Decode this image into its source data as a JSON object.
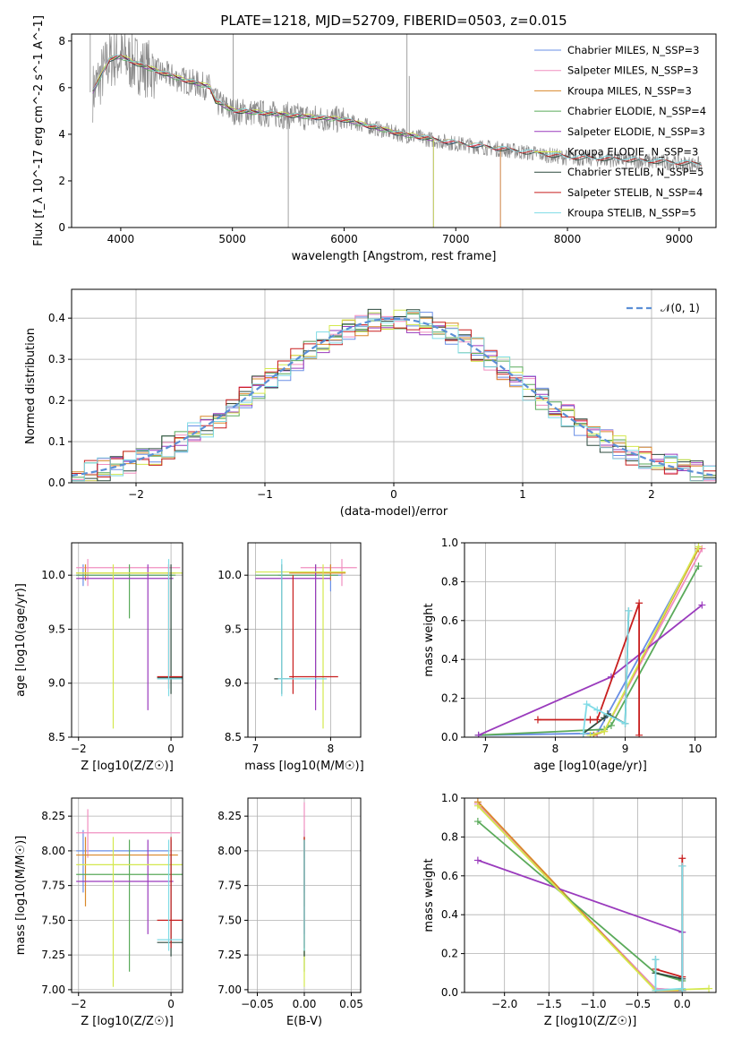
{
  "figure_title": "PLATE=1218, MJD=52709, FIBERID=0503, z=0.015",
  "colors": {
    "series": [
      "#6a8fe6",
      "#f18fc0",
      "#d9882a",
      "#5aaa5a",
      "#9a3bbd",
      "#d4e84e",
      "#2d4a3e",
      "#c81e1e",
      "#7fdbe6"
    ],
    "spectrum": "#8a8a8a",
    "normal_curve": "#5b8fd6",
    "grid": "#b0b0b0",
    "overlay_lines": [
      "#5aaa5a",
      "#9a3bbd",
      "#d4e84e",
      "#d9882a",
      "#c81e1e",
      "#5b8b7a",
      "#7fdbe6"
    ]
  },
  "chart_data": [
    {
      "id": "spectrum",
      "type": "line",
      "title": "PLATE=1218, MJD=52709, FIBERID=0503, z=0.015",
      "xlabel": "wavelength [Angstrom, rest frame]",
      "ylabel": "Flux [f_λ 10^-17 erg cm^-2 s^-1 A^-1]",
      "xlim": [
        3560,
        9330
      ],
      "ylim": [
        0,
        8.3
      ],
      "xticks": [
        4000,
        5000,
        6000,
        7000,
        8000,
        9000
      ],
      "yticks": [
        0,
        2,
        4,
        6,
        8
      ],
      "grid": false,
      "legend_position": "top-right",
      "legend": [
        "Chabrier MILES, N_SSP=3",
        "Salpeter MILES, N_SSP=3",
        "Kroupa MILES, N_SSP=3",
        "Chabrier ELODIE, N_SSP=4",
        "Salpeter ELODIE, N_SSP=3",
        "Kroupa ELODIE, N_SSP=3",
        "Chabrier STELIB, N_SSP=5",
        "Salpeter STELIB, N_SSP=4",
        "Kroupa STELIB, N_SSP=5"
      ],
      "data_envelope": {
        "x": [
          3750,
          3900,
          4000,
          4200,
          4500,
          4800,
          4850,
          5000,
          5500,
          6000,
          6500,
          7000,
          7500,
          8000,
          8500,
          9200
        ],
        "y": [
          5.8,
          7.2,
          7.3,
          6.9,
          6.4,
          6.0,
          5.4,
          5.0,
          4.8,
          4.6,
          4.0,
          3.6,
          3.3,
          3.0,
          2.9,
          2.7
        ]
      },
      "models": [
        {
          "name": "Chabrier MILES, N_SSP=3",
          "xmax": 7400
        },
        {
          "name": "Salpeter MILES, N_SSP=3",
          "xmax": 7400
        },
        {
          "name": "Kroupa MILES, N_SSP=3",
          "xmax": 7400
        },
        {
          "name": "Chabrier ELODIE, N_SSP=4",
          "xmax": 6800
        },
        {
          "name": "Salpeter ELODIE, N_SSP=3",
          "xmax": 6800
        },
        {
          "name": "Kroupa ELODIE, N_SSP=3",
          "xmax": 6800
        },
        {
          "name": "Chabrier STELIB, N_SSP=5",
          "xmax": 9200
        },
        {
          "name": "Salpeter STELIB, N_SSP=4",
          "xmax": 9200
        },
        {
          "name": "Kroupa STELIB, N_SSP=5",
          "xmax": 9200
        }
      ]
    },
    {
      "id": "residuals",
      "type": "histogram",
      "xlabel": "(data-model)/error",
      "ylabel": "Normed distribution",
      "xlim": [
        -2.5,
        2.5
      ],
      "ylim": [
        0,
        0.47
      ],
      "xticks": [
        -2,
        -1,
        0,
        1,
        2
      ],
      "yticks": [
        0.0,
        0.1,
        0.2,
        0.3,
        0.4
      ],
      "grid": true,
      "legend_position": "top-right",
      "legend": [
        "𝒩(0, 1)"
      ],
      "bin_edges": [
        -2.5,
        -2.4,
        -2.3,
        -2.2,
        -2.1,
        -2.0,
        -1.9,
        -1.8,
        -1.7,
        -1.6,
        -1.5,
        -1.4,
        -1.3,
        -1.2,
        -1.1,
        -1.0,
        -0.9,
        -0.8,
        -0.7,
        -0.6,
        -0.5,
        -0.4,
        -0.3,
        -0.2,
        -0.1,
        0.0,
        0.1,
        0.2,
        0.3,
        0.4,
        0.5,
        0.6,
        0.7,
        0.8,
        0.9,
        1.0,
        1.1,
        1.2,
        1.3,
        1.4,
        1.5,
        1.6,
        1.7,
        1.8,
        1.9,
        2.0,
        2.1,
        2.2,
        2.3,
        2.4,
        2.5
      ],
      "reference_curve": "normal(0,1) pdf"
    },
    {
      "id": "age_vs_Z",
      "type": "errorbar",
      "xlabel": "Z [log10(Z/Z☉)]",
      "ylabel": "age  [log10(age/yr)]",
      "xlim": [
        -2.15,
        0.25
      ],
      "ylim": [
        8.5,
        10.3
      ],
      "xticks": [
        -2,
        0
      ],
      "yticks": [
        8.5,
        9.0,
        9.5,
        10.0
      ],
      "grid": true,
      "points": [
        {
          "series": 0,
          "x": -1.9,
          "y": 10.0,
          "xlo": -2.05,
          "xhi": 0.05,
          "ylo": 9.9,
          "yhi": 10.1
        },
        {
          "series": 1,
          "x": -1.8,
          "y": 10.07,
          "xlo": -2.05,
          "xhi": 0.2,
          "ylo": 9.9,
          "yhi": 10.15
        },
        {
          "series": 2,
          "x": -1.85,
          "y": 10.02,
          "xlo": -2.05,
          "xhi": 0.1,
          "ylo": 9.95,
          "yhi": 10.1
        },
        {
          "series": 3,
          "x": -0.9,
          "y": 10.0,
          "xlo": -2.05,
          "xhi": 0.1,
          "ylo": 9.6,
          "yhi": 10.1
        },
        {
          "series": 4,
          "x": -0.5,
          "y": 9.97,
          "xlo": -2.05,
          "xhi": 0.05,
          "ylo": 8.75,
          "yhi": 10.1
        },
        {
          "series": 5,
          "x": -1.25,
          "y": 10.02,
          "xlo": -2.05,
          "xhi": 0.3,
          "ylo": 8.58,
          "yhi": 10.1
        },
        {
          "series": 6,
          "x": 0.0,
          "y": 9.05,
          "xlo": -0.3,
          "xhi": 0.3,
          "ylo": 8.9,
          "yhi": 10.1
        },
        {
          "series": 7,
          "x": -0.05,
          "y": 9.06,
          "xlo": -0.3,
          "xhi": 0.3,
          "ylo": 8.95,
          "yhi": 10.1
        },
        {
          "series": 8,
          "x": -0.05,
          "y": 9.04,
          "xlo": -0.3,
          "xhi": 0.3,
          "ylo": 8.88,
          "yhi": 10.15
        }
      ]
    },
    {
      "id": "age_vs_mass",
      "type": "errorbar",
      "xlabel": "mass [log10(M/M☉)]",
      "ylabel": "",
      "xlim": [
        6.9,
        8.4
      ],
      "ylim": [
        8.5,
        10.3
      ],
      "xticks": [
        7,
        8
      ],
      "yticks": [
        8.5,
        9.0,
        9.5,
        10.0
      ],
      "grid": true,
      "points": [
        {
          "series": 0,
          "x": 8.0,
          "y": 10.0,
          "xlo": 7.3,
          "xhi": 8.15,
          "ylo": 9.85,
          "yhi": 10.1
        },
        {
          "series": 1,
          "x": 8.15,
          "y": 10.07,
          "xlo": 7.6,
          "xhi": 8.35,
          "ylo": 9.9,
          "yhi": 10.15
        },
        {
          "series": 2,
          "x": 8.0,
          "y": 10.02,
          "xlo": 7.45,
          "xhi": 8.2,
          "ylo": 9.95,
          "yhi": 10.1
        },
        {
          "series": 3,
          "x": 7.8,
          "y": 10.0,
          "xlo": 7.0,
          "xhi": 8.1,
          "ylo": 8.95,
          "yhi": 10.1
        },
        {
          "series": 4,
          "x": 7.8,
          "y": 9.97,
          "xlo": 7.0,
          "xhi": 8.0,
          "ylo": 8.75,
          "yhi": 10.1
        },
        {
          "series": 5,
          "x": 7.9,
          "y": 10.03,
          "xlo": 7.0,
          "xhi": 8.2,
          "ylo": 8.58,
          "yhi": 10.1
        },
        {
          "series": 6,
          "x": 7.35,
          "y": 9.04,
          "xlo": 7.25,
          "xhi": 7.5,
          "ylo": 8.9,
          "yhi": 10.1
        },
        {
          "series": 7,
          "x": 7.5,
          "y": 9.06,
          "xlo": 7.45,
          "xhi": 8.1,
          "ylo": 8.9,
          "yhi": 10.0
        },
        {
          "series": 8,
          "x": 7.35,
          "y": 9.04,
          "xlo": 7.3,
          "xhi": 7.95,
          "ylo": 8.88,
          "yhi": 10.15
        }
      ]
    },
    {
      "id": "weight_vs_age",
      "type": "line",
      "xlabel": "age  [log10(age/yr)]",
      "ylabel": "mass weight",
      "xlim": [
        6.7,
        10.3
      ],
      "ylim": [
        0,
        1.0
      ],
      "xticks": [
        7,
        8,
        9,
        10
      ],
      "yticks": [
        0.0,
        0.2,
        0.4,
        0.6,
        0.8,
        1.0
      ],
      "grid": true,
      "lines": [
        {
          "color_index": 0,
          "points": [
            [
              6.9,
              0.01
            ],
            [
              8.6,
              0.02
            ],
            [
              10.05,
              0.97
            ]
          ]
        },
        {
          "color_index": 1,
          "points": [
            [
              8.6,
              0.02
            ],
            [
              8.7,
              0.03
            ],
            [
              10.1,
              0.97
            ]
          ]
        },
        {
          "color_index": 2,
          "points": [
            [
              8.55,
              0.01
            ],
            [
              8.7,
              0.03
            ],
            [
              10.05,
              0.97
            ]
          ]
        },
        {
          "color_index": 3,
          "points": [
            [
              6.9,
              0.01
            ],
            [
              8.7,
              0.04
            ],
            [
              8.8,
              0.06
            ],
            [
              10.05,
              0.88
            ]
          ]
        },
        {
          "color_index": 4,
          "points": [
            [
              6.9,
              0.01
            ],
            [
              8.8,
              0.31
            ],
            [
              10.1,
              0.68
            ]
          ]
        },
        {
          "color_index": 5,
          "points": [
            [
              8.5,
              0.01
            ],
            [
              8.7,
              0.03
            ],
            [
              10.05,
              0.98
            ]
          ]
        },
        {
          "color_index": 6,
          "points": [
            [
              8.4,
              0.02
            ],
            [
              8.7,
              0.1
            ],
            [
              8.75,
              0.12
            ],
            [
              9.0,
              0.07
            ],
            [
              9.05,
              0.65
            ]
          ]
        },
        {
          "color_index": 7,
          "points": [
            [
              7.75,
              0.09
            ],
            [
              8.5,
              0.09
            ],
            [
              8.6,
              0.09
            ],
            [
              9.2,
              0.69
            ],
            [
              9.2,
              0.01
            ]
          ]
        },
        {
          "color_index": 8,
          "points": [
            [
              8.4,
              0.02
            ],
            [
              8.45,
              0.17
            ],
            [
              8.6,
              0.14
            ],
            [
              9.0,
              0.07
            ],
            [
              9.05,
              0.65
            ]
          ]
        }
      ]
    },
    {
      "id": "mass_vs_Z",
      "type": "errorbar",
      "xlabel": "Z [log10(Z/Z☉)]",
      "ylabel": "mass [log10(M/M☉)]",
      "xlim": [
        -2.15,
        0.25
      ],
      "ylim": [
        6.98,
        8.38
      ],
      "xticks": [
        -2,
        0
      ],
      "yticks": [
        7.0,
        7.25,
        7.5,
        7.75,
        8.0,
        8.25
      ],
      "grid": true,
      "points": [
        {
          "series": 0,
          "x": -1.9,
          "y": 8.0,
          "xlo": -2.05,
          "xhi": -0.05,
          "ylo": 7.7,
          "yhi": 8.15
        },
        {
          "series": 1,
          "x": -1.8,
          "y": 8.13,
          "xlo": -2.05,
          "xhi": 0.2,
          "ylo": 7.95,
          "yhi": 8.3
        },
        {
          "series": 2,
          "x": -1.85,
          "y": 7.97,
          "xlo": -2.05,
          "xhi": 0.15,
          "ylo": 7.6,
          "yhi": 8.1
        },
        {
          "series": 3,
          "x": -0.9,
          "y": 7.83,
          "xlo": -2.05,
          "xhi": 0.3,
          "ylo": 7.13,
          "yhi": 8.08
        },
        {
          "series": 4,
          "x": -0.5,
          "y": 7.78,
          "xlo": -2.05,
          "xhi": 0.05,
          "ylo": 7.4,
          "yhi": 8.08
        },
        {
          "series": 5,
          "x": -1.25,
          "y": 7.9,
          "xlo": -2.05,
          "xhi": 0.3,
          "ylo": 7.02,
          "yhi": 8.1
        },
        {
          "series": 6,
          "x": 0.0,
          "y": 7.34,
          "xlo": -0.3,
          "xhi": 0.3,
          "ylo": 7.24,
          "yhi": 8.08
        },
        {
          "series": 7,
          "x": 0.0,
          "y": 7.5,
          "xlo": -0.3,
          "xhi": 0.3,
          "ylo": 7.3,
          "yhi": 8.1
        },
        {
          "series": 8,
          "x": -0.05,
          "y": 7.36,
          "xlo": -0.3,
          "xhi": 0.3,
          "ylo": 7.28,
          "yhi": 8.08
        }
      ]
    },
    {
      "id": "mass_vs_EBV",
      "type": "errorbar",
      "xlabel": "E(B-V)",
      "ylabel": "",
      "xlim": [
        -0.06,
        0.06
      ],
      "ylim": [
        6.98,
        8.38
      ],
      "xticks": [
        -0.05,
        0.0,
        0.05
      ],
      "xtick_labels": [
        "−0.05",
        "0.00",
        "0.05"
      ],
      "yticks": [
        7.0,
        7.25,
        7.5,
        7.75,
        8.0,
        8.25
      ],
      "grid": true,
      "points": [
        {
          "series": 0,
          "x": 0.0,
          "y": 8.0,
          "ylo": 7.7,
          "yhi": 8.15
        },
        {
          "series": 1,
          "x": 0.0,
          "y": 8.13,
          "ylo": 7.95,
          "yhi": 8.35
        },
        {
          "series": 2,
          "x": 0.0,
          "y": 7.97,
          "ylo": 7.6,
          "yhi": 8.1
        },
        {
          "series": 3,
          "x": 0.0,
          "y": 7.83,
          "ylo": 7.13,
          "yhi": 8.08
        },
        {
          "series": 4,
          "x": 0.0,
          "y": 7.78,
          "ylo": 7.4,
          "yhi": 8.08
        },
        {
          "series": 5,
          "x": 0.0,
          "y": 7.9,
          "ylo": 7.02,
          "yhi": 8.1
        },
        {
          "series": 6,
          "x": 0.0,
          "y": 7.34,
          "ylo": 7.24,
          "yhi": 8.08
        },
        {
          "series": 7,
          "x": 0.0,
          "y": 7.5,
          "ylo": 7.3,
          "yhi": 8.1
        },
        {
          "series": 8,
          "x": 0.0,
          "y": 7.36,
          "ylo": 7.28,
          "yhi": 8.08
        }
      ]
    },
    {
      "id": "weight_vs_Z",
      "type": "line",
      "xlabel": "Z [log10(Z/Z☉)]",
      "ylabel": "mass weight",
      "xlim": [
        -2.45,
        0.38
      ],
      "ylim": [
        0,
        1.0
      ],
      "xticks": [
        -2.0,
        -1.5,
        -1.0,
        -0.5,
        0.0
      ],
      "yticks": [
        0.0,
        0.2,
        0.4,
        0.6,
        0.8,
        1.0
      ],
      "grid": true,
      "lines": [
        {
          "color_index": 0,
          "points": [
            [
              -2.3,
              0.97
            ],
            [
              -0.3,
              0.02
            ],
            [
              0.0,
              0.01
            ]
          ]
        },
        {
          "color_index": 1,
          "points": [
            [
              -2.3,
              0.97
            ],
            [
              -0.3,
              0.02
            ],
            [
              0.0,
              0.01
            ]
          ]
        },
        {
          "color_index": 2,
          "points": [
            [
              -2.3,
              0.98
            ],
            [
              -0.3,
              0.01
            ],
            [
              0.0,
              0.01
            ]
          ]
        },
        {
          "color_index": 3,
          "points": [
            [
              -2.3,
              0.88
            ],
            [
              -0.3,
              0.1
            ],
            [
              0.0,
              0.06
            ]
          ]
        },
        {
          "color_index": 4,
          "points": [
            [
              -2.3,
              0.68
            ],
            [
              0.0,
              0.31
            ],
            [
              0.0,
              0.01
            ]
          ]
        },
        {
          "color_index": 5,
          "points": [
            [
              -2.3,
              0.96
            ],
            [
              -0.3,
              0.01
            ],
            [
              0.3,
              0.02
            ]
          ]
        },
        {
          "color_index": 6,
          "points": [
            [
              -0.3,
              0.17
            ],
            [
              -0.3,
              0.1
            ],
            [
              0.0,
              0.07
            ],
            [
              0.0,
              0.65
            ],
            [
              0.0,
              0.01
            ]
          ]
        },
        {
          "color_index": 7,
          "points": [
            [
              -0.3,
              0.12
            ],
            [
              0.0,
              0.08
            ],
            [
              0.0,
              0.69
            ],
            [
              0.0,
              0.01
            ]
          ]
        },
        {
          "color_index": 8,
          "points": [
            [
              -0.3,
              0.17
            ],
            [
              -0.3,
              0.01
            ],
            [
              0.0,
              0.02
            ],
            [
              0.0,
              0.65
            ],
            [
              0.0,
              0.01
            ]
          ]
        }
      ]
    }
  ]
}
